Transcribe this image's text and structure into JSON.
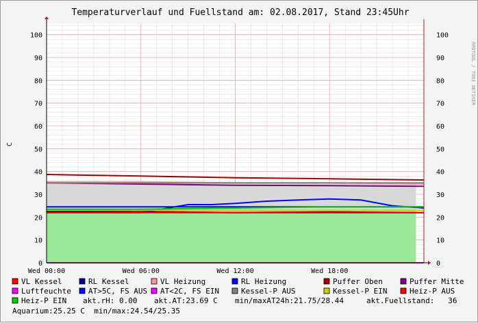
{
  "chart_data": {
    "type": "line",
    "title": "Temperaturverlauf und Fuellstand am: 02.08.2017, Stand 23:45Uhr",
    "ylabel": "C",
    "side_label": "RRDTOOL / TOBI OETIKER",
    "ylim": [
      0,
      105
    ],
    "yticks": [
      "0",
      "10",
      "20",
      "30",
      "40",
      "50",
      "60",
      "70",
      "80",
      "90",
      "100"
    ],
    "xticks": [
      "Wed 00:00",
      "Wed 06:00",
      "Wed 12:00",
      "Wed 18:00"
    ],
    "grid": true,
    "series": [
      {
        "name": "VL Kessel",
        "color": "#ff0000",
        "x": [
          0,
          6,
          12,
          18,
          24
        ],
        "values": [
          22.5,
          22.5,
          22.0,
          22.0,
          22.0
        ]
      },
      {
        "name": "RL Kessel",
        "color": "#000080",
        "x": [
          0,
          6,
          12,
          18,
          24
        ],
        "values": [
          22.5,
          22.3,
          22.0,
          22.3,
          22.0
        ]
      },
      {
        "name": "VL Heizung",
        "color": "#ff9999",
        "x": [
          0,
          6,
          12,
          18,
          24
        ],
        "values": [
          35.5,
          35.5,
          35.0,
          35.0,
          34.5
        ]
      },
      {
        "name": "RL Heizung",
        "color": "#0000ff",
        "x": [
          0,
          3,
          6,
          9,
          10.5,
          12,
          14,
          16,
          18,
          20,
          22,
          24
        ],
        "values": [
          22.0,
          22.0,
          22.0,
          25.5,
          25.5,
          26.0,
          27.0,
          27.5,
          28.0,
          27.5,
          25.0,
          24.0
        ]
      },
      {
        "name": "Puffer Oben",
        "color": "#a00000",
        "x": [
          0,
          6,
          12,
          18,
          24
        ],
        "values": [
          38.7,
          38.0,
          37.3,
          36.8,
          36.3
        ]
      },
      {
        "name": "Puffer Mitte",
        "color": "#800080",
        "x": [
          0,
          6,
          12,
          18,
          24
        ],
        "values": [
          35.0,
          34.5,
          34.0,
          33.8,
          33.5
        ]
      },
      {
        "name": "Luftfeuchte",
        "color": "#ff00ff",
        "x": [
          0,
          24
        ],
        "values": [
          0,
          0
        ]
      },
      {
        "name": "AT>5C, FS AUS",
        "color": "#0000ff",
        "x": [
          0,
          24
        ],
        "values": [
          24.5,
          24.5
        ]
      },
      {
        "name": "AT<2C, FS EIN",
        "color": "#ff00ff",
        "x": [
          0,
          24
        ],
        "values": [
          0,
          0
        ]
      },
      {
        "name": "Kessel-P AUS",
        "color": "#808080",
        "x": [
          0,
          24
        ],
        "values": [
          35.0,
          35.0
        ]
      },
      {
        "name": "Kessel-P EIN",
        "color": "#cccc00",
        "x": [
          0,
          24
        ],
        "values": [
          23.0,
          23.0
        ]
      },
      {
        "name": "Heiz-P AUS",
        "color": "#ff0000",
        "x": [
          0,
          24
        ],
        "values": [
          22.0,
          22.0
        ]
      },
      {
        "name": "Heiz-P EIN",
        "color": "#00cc00",
        "x": [
          0,
          6,
          12,
          18,
          24
        ],
        "values": [
          23.5,
          23.5,
          24.0,
          24.5,
          24.5
        ]
      }
    ],
    "fill_area": {
      "color": "#9be89b",
      "x": [
        0,
        23.5
      ],
      "values": [
        22.0,
        22.0
      ]
    }
  },
  "legend_rows": [
    [
      "VL Kessel",
      "RL Kessel",
      "VL Heizung",
      "RL Heizung",
      "Puffer Oben",
      "Puffer Mitte"
    ],
    [
      "Luftfeuchte",
      "AT>5C, FS AUS",
      "AT<2C, FS EIN",
      "Kessel-P AUS",
      "Kessel-P EIN",
      "Heiz-P AUS"
    ]
  ],
  "legend_colors": [
    [
      "#ff0000",
      "#000080",
      "#ff9999",
      "#0000ff",
      "#a00000",
      "#800080"
    ],
    [
      "#ff00ff",
      "#0000ff",
      "#ff00ff",
      "#808080",
      "#cccc00",
      "#ff0000"
    ]
  ],
  "status_line_1": {
    "label": "Heiz-P EIN",
    "color": "#00cc00",
    "rh": "akt.rH: 0.00",
    "at": "akt.AT:23.69 C",
    "minmax": "min/maxAT24h:21.75/28.44",
    "fuell": "akt.Fuellstand:   36"
  },
  "status_line_2": "Aquarium:25.25 C  min/max:24.54/25.35"
}
